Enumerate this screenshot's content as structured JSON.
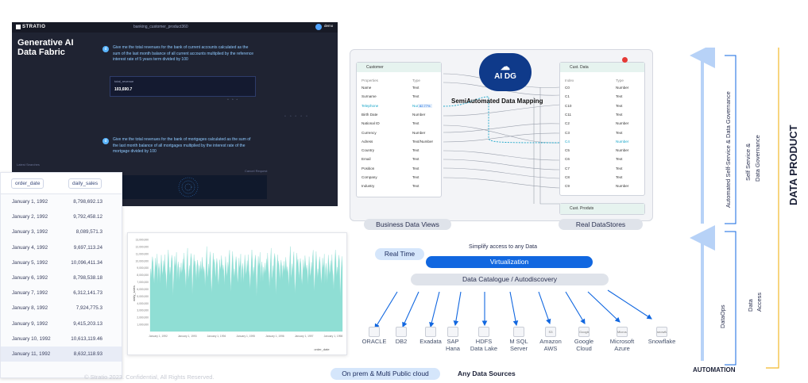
{
  "app": {
    "logo": "STRATIO",
    "dataset": "banking_customer_product360",
    "user": "demo",
    "title": "Generative AI Data Fabric",
    "question1": "Give me the total revenues for the bank of current accounts calculated as the sum of the last month balance of all current accounts multiplied by the reference interest rate of 5 years term divided by 100",
    "result_label": "total_revenue",
    "result_value": "103,690.7",
    "question2": "Give me the total revenues for the bank of mortgages calculated as the sum of the last month balance of all mortgages multiplied by the interest rate of the mortgage divided by 100",
    "cancel": "Cancel Request",
    "sidebar_label": "Latest Searches"
  },
  "table": {
    "headers": [
      "order_date",
      "daily_sales"
    ],
    "rows": [
      [
        "January 1, 1992",
        "8,798,692.13"
      ],
      [
        "January 2, 1992",
        "9,792,458.12"
      ],
      [
        "January 3, 1992",
        "8,089,571.3"
      ],
      [
        "January 4, 1992",
        "9,697,113.24"
      ],
      [
        "January 5, 1992",
        "10,096,411.34"
      ],
      [
        "January 6, 1992",
        "8,798,538.18"
      ],
      [
        "January 7, 1992",
        "6,312,141.73"
      ],
      [
        "January 8, 1992",
        "7,924,775.3"
      ],
      [
        "January 9, 1992",
        "9,415,203.13"
      ],
      [
        "January 10, 1992",
        "10,613,119.46"
      ],
      [
        "January 11, 1992",
        "8,632,118.93"
      ]
    ]
  },
  "chart_data": {
    "type": "area",
    "xlabel": "order_date",
    "ylabel": "daily_sales",
    "ylim": [
      0,
      13000000
    ],
    "yticks": [
      "1,000,000",
      "2,000,000",
      "3,000,000",
      "4,000,000",
      "5,000,000",
      "6,000,000",
      "7,000,000",
      "8,000,000",
      "9,000,000",
      "10,000,000",
      "11,000,000",
      "12,000,000",
      "13,000,000"
    ],
    "xticks": [
      "January 1, 1992",
      "January 1, 1993",
      "January 1, 1994",
      "January 1, 1995",
      "January 1, 1996",
      "January 1, 1997",
      "January 1, 1998"
    ],
    "values": [
      8798692.13,
      9792458.12,
      8089571.3,
      9697113.24,
      10096411.34,
      8798538.18,
      6312141.73,
      7924775.3,
      9415203.13,
      10613119.46,
      8632118.93
    ],
    "color": "#8fded4"
  },
  "mapping": {
    "left_card_title": "Customer",
    "left_columns": [
      "Properties",
      "Type"
    ],
    "left_fields": [
      [
        "Name",
        "Text"
      ],
      [
        "Surname",
        "Text"
      ],
      [
        "Telephone",
        "Number"
      ],
      [
        "Birth Date",
        "Number"
      ],
      [
        "National ID",
        "Text"
      ],
      [
        "Currency",
        "Number"
      ],
      [
        "Adress",
        "Text/Number"
      ],
      [
        "Country",
        "Text"
      ],
      [
        "Email",
        "Text"
      ],
      [
        "Position",
        "Text"
      ],
      [
        "Company",
        "Text"
      ],
      [
        "Industry",
        "Text"
      ]
    ],
    "right_card_title": "Cust. Data",
    "right_columns": [
      "Index",
      "Type"
    ],
    "right_fields": [
      [
        "C0",
        "Number"
      ],
      [
        "C1",
        "Text"
      ],
      [
        "C10",
        "Text"
      ],
      [
        "C11",
        "Text"
      ],
      [
        "C2",
        "Number"
      ],
      [
        "C3",
        "Text"
      ],
      [
        "C4",
        "Number"
      ],
      [
        "C5",
        "Number"
      ],
      [
        "C6",
        "Text"
      ],
      [
        "C7",
        "Text"
      ],
      [
        "C8",
        "Text"
      ],
      [
        "C9",
        "Number"
      ]
    ],
    "products_card": "Cust. Produts",
    "ai_badge": "AI DG",
    "mapping_label": "SemiAutomated Data Mapping",
    "tag": "82.77%",
    "left_caption": "Business Data Views",
    "right_caption": "Real DataStores"
  },
  "stack": {
    "simplify": "Simplify access to any Data",
    "realtime": "Real Time",
    "virtualization": "Virtualization",
    "catalogue": "Data Catalogue / Autodiscovery",
    "sources": [
      {
        "label": "ORACLE"
      },
      {
        "label": "DB2"
      },
      {
        "label": "Exadata"
      },
      {
        "label": "SAP\nHana"
      },
      {
        "label": "HDFS\nData Lake"
      },
      {
        "label": "M SQL\nServer"
      },
      {
        "label": "Amazon\nAWS",
        "logo": "S3"
      },
      {
        "label": "Google\nCloud",
        "logo": "Google Cloud Storage"
      },
      {
        "label": "Microsoft\nAzure",
        "logo": "Microsoft Azure Data Lake"
      },
      {
        "label": "Snowflake",
        "logo": "snowflake"
      }
    ],
    "onprem": "On prem & Multi Public cloud",
    "any_sources": "Any Data Sources",
    "copyright": "© Stratio 2023. Confidential, All Rights Reserved."
  },
  "side": {
    "gov_vertical": "Automated Self-Service & Data Governance",
    "dataops": "DataOps",
    "self_service": "Self Service &",
    "data_governance": "Data Governance",
    "data_access1": "Data",
    "data_access2": "Access",
    "automation": "AUTOMATION",
    "data_product": "DATA PRODUCT"
  },
  "colors": {
    "accent": "#1167e0",
    "navy": "#0f3a8a",
    "gold": "#f2b92a",
    "mint": "#8fded4"
  }
}
